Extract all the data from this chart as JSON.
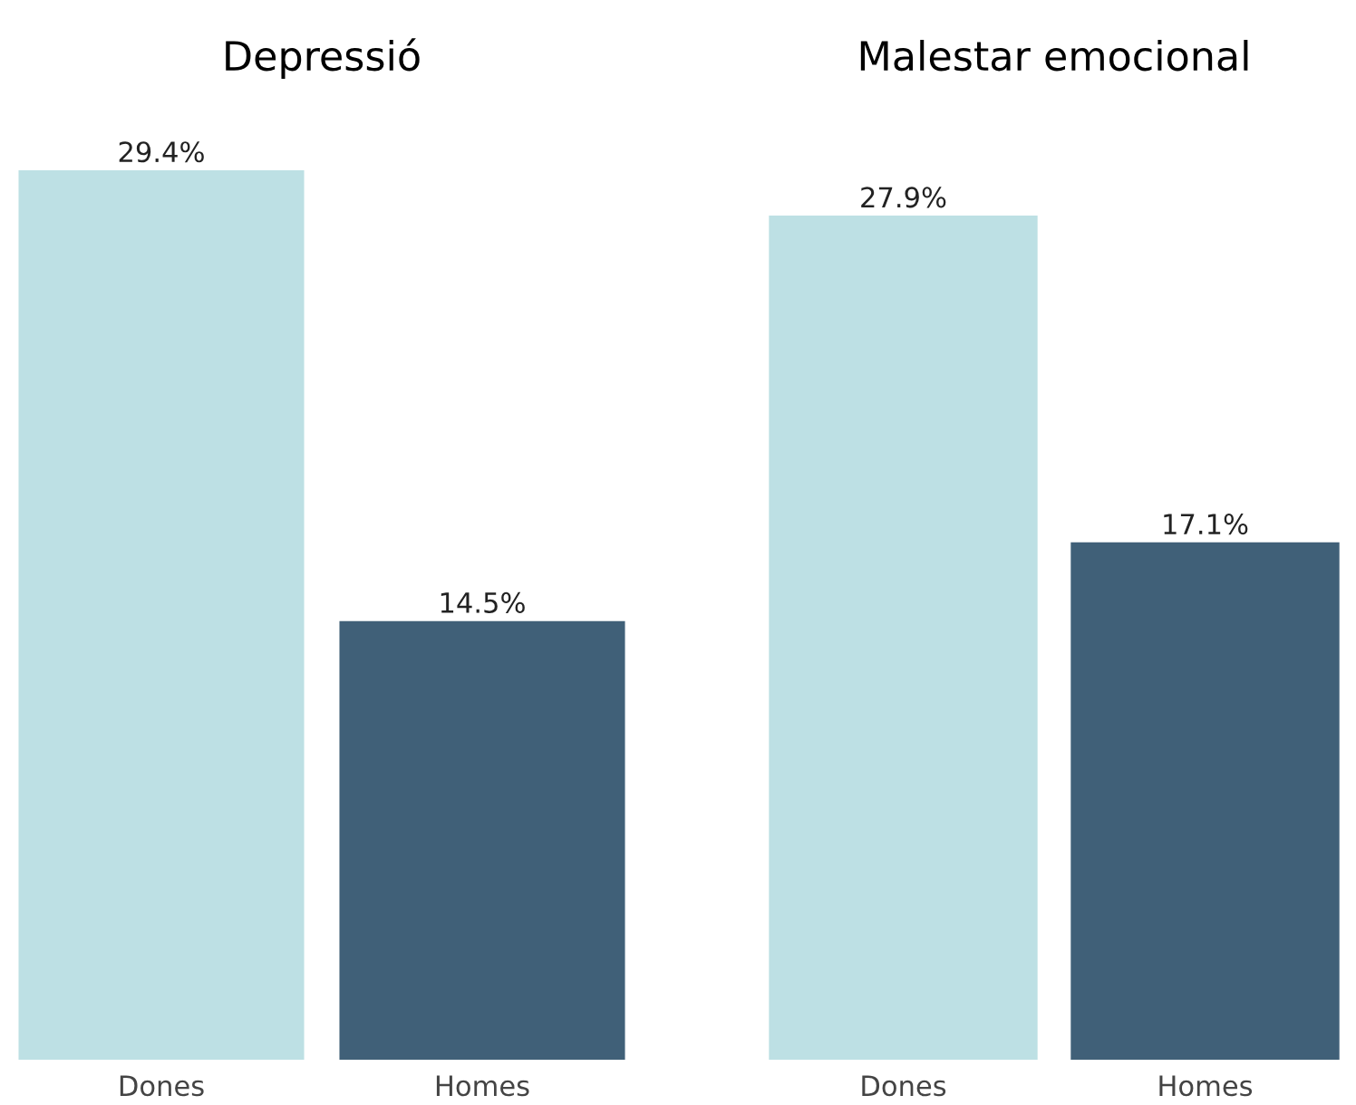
{
  "chart_data": [
    {
      "type": "bar",
      "title": "Depressió",
      "categories": [
        "Dones",
        "Homes"
      ],
      "values": [
        29.4,
        14.5
      ],
      "colors": [
        "#bde0e4",
        "#406078"
      ],
      "value_labels": [
        "29.4%",
        "14.5%"
      ]
    },
    {
      "type": "bar",
      "title": "Malestar emocional",
      "categories": [
        "Dones",
        "Homes"
      ],
      "values": [
        27.9,
        17.1
      ],
      "colors": [
        "#bde0e4",
        "#406078"
      ],
      "value_labels": [
        "27.9%",
        "17.1%"
      ]
    }
  ]
}
